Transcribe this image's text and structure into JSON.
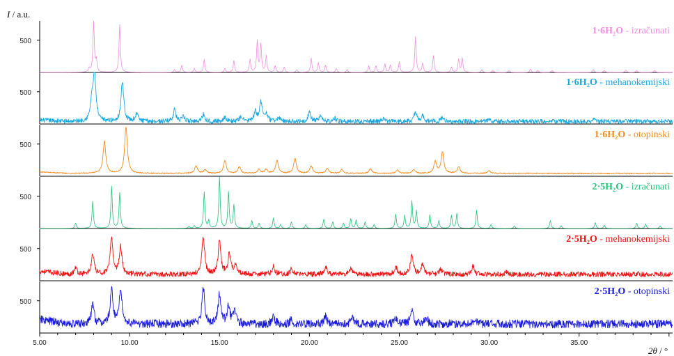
{
  "chart_data": {
    "type": "line",
    "ylabel_symbol": "I",
    "ylabel_unit": " / a.u.",
    "xlabel_symbol": "2θ",
    "xlabel_unit": " / °",
    "xlim": [
      5.0,
      40.2
    ],
    "ylim": [
      0,
      800
    ],
    "x_ticks": [
      "5.00",
      "10.00",
      "15.00",
      "20.00",
      "25.00",
      "30.00",
      "35.00"
    ],
    "x_tick_values": [
      5,
      10,
      15,
      20,
      25,
      30,
      35
    ],
    "y_tick_label": "500",
    "grid": false,
    "series": [
      {
        "name": "1·6H₂O - izračunati",
        "label_compound": "1·6H₂O",
        "label_method": " - izračunati",
        "color": "#f08ee0",
        "baseline": 2,
        "noise": 0,
        "peaks": [
          [
            7.75,
            60
          ],
          [
            8.0,
            790
          ],
          [
            8.15,
            180
          ],
          [
            9.45,
            740
          ],
          [
            12.5,
            40
          ],
          [
            12.9,
            110
          ],
          [
            13.6,
            60
          ],
          [
            14.15,
            200
          ],
          [
            15.3,
            60
          ],
          [
            15.8,
            180
          ],
          [
            16.7,
            200
          ],
          [
            17.1,
            480
          ],
          [
            17.3,
            430
          ],
          [
            17.6,
            250
          ],
          [
            18.1,
            100
          ],
          [
            18.6,
            80
          ],
          [
            19.3,
            40
          ],
          [
            20.1,
            220
          ],
          [
            20.5,
            150
          ],
          [
            20.9,
            110
          ],
          [
            21.5,
            60
          ],
          [
            22.1,
            40
          ],
          [
            23.3,
            100
          ],
          [
            23.7,
            100
          ],
          [
            24.2,
            130
          ],
          [
            24.5,
            110
          ],
          [
            25.0,
            160
          ],
          [
            25.9,
            550
          ],
          [
            26.3,
            140
          ],
          [
            26.9,
            260
          ],
          [
            27.9,
            80
          ],
          [
            28.3,
            200
          ],
          [
            28.5,
            220
          ],
          [
            29.6,
            40
          ],
          [
            30.2,
            30
          ],
          [
            31.1,
            30
          ],
          [
            32.3,
            50
          ],
          [
            32.7,
            30
          ],
          [
            33.5,
            30
          ],
          [
            35.8,
            40
          ],
          [
            36.4,
            30
          ],
          [
            37.6,
            35
          ],
          [
            38.2,
            30
          ],
          [
            39.2,
            30
          ]
        ]
      },
      {
        "name": "1·6H₂O - mehanokemijski",
        "label_compound": "1·6H₂O",
        "label_method": " - mehanokemijski",
        "color": "#1aa7e0",
        "baseline": 40,
        "noise": 35,
        "peaks": [
          [
            7.9,
            300
          ],
          [
            8.05,
            720
          ],
          [
            9.6,
            620
          ],
          [
            10.4,
            120
          ],
          [
            12.5,
            180
          ],
          [
            13.0,
            70
          ],
          [
            14.1,
            110
          ],
          [
            15.3,
            70
          ],
          [
            16.2,
            80
          ],
          [
            17.0,
            140
          ],
          [
            17.3,
            290
          ],
          [
            17.6,
            120
          ],
          [
            18.3,
            60
          ],
          [
            20.0,
            140
          ],
          [
            20.6,
            80
          ],
          [
            21.4,
            50
          ],
          [
            24.1,
            40
          ],
          [
            25.9,
            140
          ],
          [
            26.3,
            90
          ],
          [
            27.4,
            60
          ],
          [
            30.0,
            30
          ],
          [
            35.8,
            30
          ]
        ]
      },
      {
        "name": "1·6H₂O - otopinski",
        "label_compound": "1·6H₂O",
        "label_method": " - otopinski",
        "color": "#f28a1c",
        "baseline": 45,
        "noise": 8,
        "peaks": [
          [
            8.6,
            500
          ],
          [
            9.8,
            720
          ],
          [
            13.7,
            120
          ],
          [
            14.2,
            60
          ],
          [
            15.3,
            200
          ],
          [
            16.1,
            100
          ],
          [
            17.2,
            60
          ],
          [
            17.6,
            60
          ],
          [
            18.2,
            200
          ],
          [
            19.2,
            230
          ],
          [
            20.1,
            120
          ],
          [
            21.0,
            80
          ],
          [
            21.8,
            60
          ],
          [
            23.4,
            70
          ],
          [
            24.9,
            50
          ],
          [
            25.8,
            60
          ],
          [
            27.0,
            180
          ],
          [
            27.4,
            330
          ],
          [
            28.3,
            100
          ],
          [
            30.0,
            40
          ]
        ]
      },
      {
        "name": "2·5H₂O - izračunati",
        "label_compound": "2·5H₂O",
        "label_method": " - izračunati",
        "color": "#22c07a",
        "baseline": 2,
        "noise": 0,
        "peaks": [
          [
            7.0,
            80
          ],
          [
            7.95,
            420
          ],
          [
            9.0,
            650
          ],
          [
            9.45,
            550
          ],
          [
            13.3,
            30
          ],
          [
            13.6,
            40
          ],
          [
            14.15,
            560
          ],
          [
            14.4,
            120
          ],
          [
            15.0,
            800
          ],
          [
            15.5,
            560
          ],
          [
            15.8,
            360
          ],
          [
            16.8,
            120
          ],
          [
            17.2,
            80
          ],
          [
            18.0,
            160
          ],
          [
            18.4,
            60
          ],
          [
            19.0,
            100
          ],
          [
            19.8,
            60
          ],
          [
            20.8,
            140
          ],
          [
            21.3,
            100
          ],
          [
            21.9,
            80
          ],
          [
            22.3,
            150
          ],
          [
            22.6,
            130
          ],
          [
            23.1,
            100
          ],
          [
            23.6,
            60
          ],
          [
            24.8,
            220
          ],
          [
            25.3,
            200
          ],
          [
            25.7,
            420
          ],
          [
            25.95,
            270
          ],
          [
            26.7,
            210
          ],
          [
            27.2,
            120
          ],
          [
            27.9,
            200
          ],
          [
            28.2,
            230
          ],
          [
            29.3,
            280
          ],
          [
            30.1,
            60
          ],
          [
            31.4,
            40
          ],
          [
            33.4,
            120
          ],
          [
            34.0,
            40
          ],
          [
            35.9,
            90
          ],
          [
            36.4,
            50
          ],
          [
            38.2,
            80
          ],
          [
            38.7,
            70
          ],
          [
            39.5,
            40
          ]
        ]
      },
      {
        "name": "2·5H₂O - mehanokemijski",
        "label_compound": "2·5H₂O",
        "label_method": " - mehanokemijski",
        "color": "#ee1111",
        "baseline": 100,
        "noise": 40,
        "peaks": [
          [
            7.0,
            100
          ],
          [
            7.95,
            310
          ],
          [
            9.0,
            560
          ],
          [
            9.5,
            430
          ],
          [
            14.1,
            580
          ],
          [
            15.0,
            510
          ],
          [
            15.55,
            330
          ],
          [
            15.9,
            160
          ],
          [
            18.0,
            120
          ],
          [
            19.0,
            80
          ],
          [
            20.9,
            120
          ],
          [
            22.3,
            100
          ],
          [
            24.8,
            120
          ],
          [
            25.7,
            310
          ],
          [
            26.3,
            150
          ],
          [
            27.3,
            80
          ],
          [
            29.1,
            120
          ],
          [
            31.0,
            40
          ]
        ]
      },
      {
        "name": "2·5H₂O - otopinski",
        "label_compound": "2·5H₂O",
        "label_method": " - otopinski",
        "color": "#1a1adb",
        "baseline": 140,
        "noise": 65,
        "peaks": [
          [
            7.95,
            300
          ],
          [
            9.0,
            530
          ],
          [
            9.5,
            560
          ],
          [
            14.1,
            580
          ],
          [
            15.0,
            450
          ],
          [
            15.5,
            280
          ],
          [
            15.85,
            200
          ],
          [
            18.0,
            120
          ],
          [
            19.0,
            80
          ],
          [
            20.9,
            120
          ],
          [
            22.4,
            100
          ],
          [
            24.8,
            100
          ],
          [
            25.7,
            230
          ],
          [
            26.5,
            100
          ],
          [
            29.2,
            80
          ]
        ]
      }
    ]
  }
}
